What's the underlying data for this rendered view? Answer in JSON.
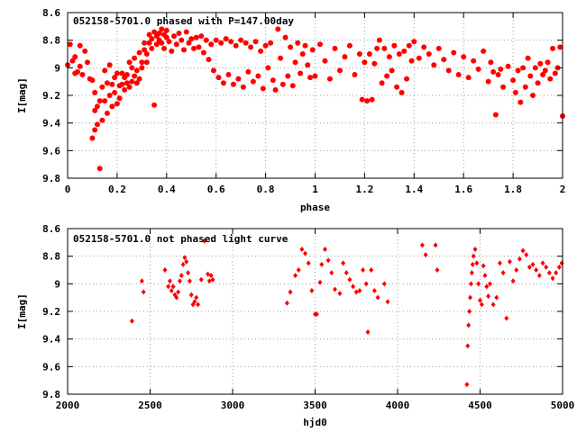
{
  "colors": {
    "series": "#ff0000",
    "axis": "#000000",
    "grid": "#a0a0a0",
    "background": "#ffffff"
  },
  "chart_data": [
    {
      "type": "scatter",
      "title": "052158-5701.0 phased with P=147.00day",
      "xlabel": "phase",
      "ylabel": "I[mag]",
      "xlim": [
        0,
        2
      ],
      "ylim": [
        9.8,
        8.6
      ],
      "y_inverted": true,
      "grid": true,
      "marker": "filled-circle",
      "xticks": [
        0,
        0.2,
        0.4,
        0.6,
        0.8,
        1,
        1.2,
        1.4,
        1.6,
        1.8,
        2
      ],
      "xtick_labels": [
        "0",
        "0.2",
        "0.4",
        "0.6",
        "0.8",
        "1",
        "1.2",
        "1.4",
        "1.6",
        "1.8",
        "2"
      ],
      "yticks": [
        8.6,
        8.8,
        9,
        9.2,
        9.4,
        9.6,
        9.8
      ],
      "ytick_labels": [
        "8.6",
        "8.8",
        "9",
        "9.2",
        "9.4",
        "9.6",
        "9.8"
      ],
      "points": [
        [
          0.0,
          8.98
        ],
        [
          0.01,
          8.83
        ],
        [
          0.02,
          8.95
        ],
        [
          0.03,
          9.04
        ],
        [
          0.03,
          8.92
        ],
        [
          0.04,
          9.03
        ],
        [
          0.05,
          8.84
        ],
        [
          0.05,
          8.99
        ],
        [
          0.06,
          9.05
        ],
        [
          0.07,
          8.88
        ],
        [
          0.08,
          8.96
        ],
        [
          0.09,
          9.08
        ],
        [
          0.1,
          9.09
        ],
        [
          0.1,
          9.51
        ],
        [
          0.11,
          9.45
        ],
        [
          0.11,
          9.18
        ],
        [
          0.11,
          9.31
        ],
        [
          0.12,
          9.41
        ],
        [
          0.12,
          9.28
        ],
        [
          0.13,
          9.24
        ],
        [
          0.13,
          9.73
        ],
        [
          0.14,
          9.38
        ],
        [
          0.14,
          9.14
        ],
        [
          0.15,
          9.02
        ],
        [
          0.15,
          9.24
        ],
        [
          0.16,
          9.33
        ],
        [
          0.16,
          9.11
        ],
        [
          0.17,
          9.2
        ],
        [
          0.17,
          8.98
        ],
        [
          0.18,
          9.28
        ],
        [
          0.18,
          9.12
        ],
        [
          0.19,
          9.18
        ],
        [
          0.19,
          9.07
        ],
        [
          0.2,
          9.04
        ],
        [
          0.2,
          9.26
        ],
        [
          0.21,
          9.13
        ],
        [
          0.21,
          9.22
        ],
        [
          0.22,
          9.04
        ],
        [
          0.22,
          9.12
        ],
        [
          0.23,
          9.07
        ],
        [
          0.23,
          9.16
        ],
        [
          0.24,
          9.11
        ],
        [
          0.24,
          9.05
        ],
        [
          0.25,
          9.14
        ],
        [
          0.25,
          8.96
        ],
        [
          0.26,
          9.1
        ],
        [
          0.26,
          9.0
        ],
        [
          0.27,
          9.06
        ],
        [
          0.27,
          8.93
        ],
        [
          0.28,
          9.11
        ],
        [
          0.28,
          9.02
        ],
        [
          0.29,
          9.08
        ],
        [
          0.29,
          8.89
        ],
        [
          0.3,
          9.0
        ],
        [
          0.3,
          8.96
        ],
        [
          0.31,
          8.87
        ],
        [
          0.31,
          8.82
        ],
        [
          0.32,
          8.9
        ],
        [
          0.32,
          8.96
        ],
        [
          0.33,
          8.82
        ],
        [
          0.33,
          8.76
        ],
        [
          0.34,
          8.86
        ],
        [
          0.34,
          8.79
        ],
        [
          0.35,
          8.74
        ],
        [
          0.35,
          9.27
        ],
        [
          0.36,
          8.77
        ],
        [
          0.36,
          8.83
        ],
        [
          0.37,
          8.75
        ],
        [
          0.37,
          8.8
        ],
        [
          0.38,
          8.72
        ],
        [
          0.38,
          8.82
        ],
        [
          0.39,
          8.76
        ],
        [
          0.39,
          8.86
        ],
        [
          0.4,
          8.78
        ],
        [
          0.4,
          8.73
        ],
        [
          0.41,
          8.81
        ],
        [
          0.42,
          8.88
        ],
        [
          0.43,
          8.77
        ],
        [
          0.44,
          8.83
        ],
        [
          0.45,
          8.75
        ],
        [
          0.46,
          8.8
        ],
        [
          0.47,
          8.87
        ],
        [
          0.48,
          8.74
        ],
        [
          0.49,
          8.82
        ],
        [
          0.5,
          8.79
        ],
        [
          0.51,
          8.86
        ],
        [
          0.52,
          8.78
        ],
        [
          0.53,
          8.85
        ],
        [
          0.54,
          8.77
        ],
        [
          0.55,
          8.89
        ],
        [
          0.56,
          8.8
        ],
        [
          0.57,
          8.94
        ],
        [
          0.58,
          8.83
        ],
        [
          0.59,
          9.02
        ],
        [
          0.6,
          8.8
        ],
        [
          0.61,
          9.07
        ],
        [
          0.62,
          8.82
        ],
        [
          0.63,
          9.11
        ],
        [
          0.64,
          8.79
        ],
        [
          0.65,
          9.05
        ],
        [
          0.66,
          8.81
        ],
        [
          0.67,
          9.12
        ],
        [
          0.68,
          8.84
        ],
        [
          0.69,
          9.08
        ],
        [
          0.7,
          8.8
        ],
        [
          0.71,
          9.14
        ],
        [
          0.72,
          8.82
        ],
        [
          0.73,
          9.03
        ],
        [
          0.74,
          8.85
        ],
        [
          0.75,
          9.1
        ],
        [
          0.76,
          8.81
        ],
        [
          0.77,
          9.06
        ],
        [
          0.78,
          8.88
        ],
        [
          0.79,
          9.15
        ],
        [
          0.8,
          8.84
        ],
        [
          0.81,
          9.0
        ],
        [
          0.82,
          8.82
        ],
        [
          0.83,
          9.09
        ],
        [
          0.84,
          9.16
        ],
        [
          0.85,
          8.72
        ],
        [
          0.86,
          8.93
        ],
        [
          0.87,
          9.12
        ],
        [
          0.88,
          8.78
        ],
        [
          0.89,
          9.06
        ],
        [
          0.9,
          8.85
        ],
        [
          0.91,
          9.13
        ],
        [
          0.92,
          8.96
        ],
        [
          0.93,
          8.82
        ],
        [
          0.94,
          9.04
        ],
        [
          0.95,
          8.9
        ],
        [
          0.96,
          8.84
        ],
        [
          0.97,
          8.98
        ],
        [
          0.98,
          9.07
        ],
        [
          0.99,
          8.87
        ],
        [
          1.0,
          9.06
        ],
        [
          1.02,
          8.83
        ],
        [
          1.04,
          8.95
        ],
        [
          1.06,
          9.08
        ],
        [
          1.08,
          8.86
        ],
        [
          1.1,
          9.02
        ],
        [
          1.12,
          8.92
        ],
        [
          1.14,
          8.84
        ],
        [
          1.16,
          9.05
        ],
        [
          1.18,
          8.9
        ],
        [
          1.19,
          9.23
        ],
        [
          1.2,
          8.96
        ],
        [
          1.21,
          9.24
        ],
        [
          1.22,
          8.9
        ],
        [
          1.23,
          9.23
        ],
        [
          1.24,
          8.97
        ],
        [
          1.25,
          8.86
        ],
        [
          1.26,
          8.8
        ],
        [
          1.27,
          9.11
        ],
        [
          1.28,
          8.86
        ],
        [
          1.29,
          9.06
        ],
        [
          1.3,
          8.92
        ],
        [
          1.31,
          9.02
        ],
        [
          1.32,
          8.84
        ],
        [
          1.33,
          9.14
        ],
        [
          1.34,
          8.9
        ],
        [
          1.35,
          9.18
        ],
        [
          1.36,
          8.88
        ],
        [
          1.37,
          9.08
        ],
        [
          1.38,
          8.84
        ],
        [
          1.39,
          8.95
        ],
        [
          1.4,
          8.81
        ],
        [
          1.42,
          8.93
        ],
        [
          1.44,
          8.85
        ],
        [
          1.46,
          8.9
        ],
        [
          1.48,
          8.98
        ],
        [
          1.5,
          8.86
        ],
        [
          1.52,
          8.94
        ],
        [
          1.54,
          9.02
        ],
        [
          1.56,
          8.89
        ],
        [
          1.58,
          9.05
        ],
        [
          1.6,
          8.92
        ],
        [
          1.62,
          9.07
        ],
        [
          1.64,
          8.95
        ],
        [
          1.66,
          9.01
        ],
        [
          1.68,
          8.88
        ],
        [
          1.7,
          9.1
        ],
        [
          1.71,
          8.96
        ],
        [
          1.72,
          9.03
        ],
        [
          1.73,
          9.34
        ],
        [
          1.74,
          9.05
        ],
        [
          1.75,
          9.01
        ],
        [
          1.76,
          9.14
        ],
        [
          1.78,
          8.99
        ],
        [
          1.8,
          9.09
        ],
        [
          1.81,
          9.18
        ],
        [
          1.82,
          9.02
        ],
        [
          1.83,
          9.25
        ],
        [
          1.84,
          9.0
        ],
        [
          1.85,
          9.14
        ],
        [
          1.86,
          8.93
        ],
        [
          1.87,
          9.06
        ],
        [
          1.88,
          9.2
        ],
        [
          1.89,
          9.0
        ],
        [
          1.9,
          9.11
        ],
        [
          1.91,
          8.97
        ],
        [
          1.92,
          9.05
        ],
        [
          1.93,
          9.02
        ],
        [
          1.94,
          8.96
        ],
        [
          1.95,
          9.08
        ],
        [
          1.96,
          8.86
        ],
        [
          1.97,
          9.04
        ],
        [
          1.98,
          9.0
        ],
        [
          1.99,
          8.85
        ],
        [
          2.0,
          9.35
        ]
      ]
    },
    {
      "type": "scatter",
      "title": "052158-5701.0 not phased light curve",
      "xlabel": "hjd0",
      "ylabel": "I[mag]",
      "xlim": [
        2000,
        5000
      ],
      "ylim": [
        9.8,
        8.6
      ],
      "y_inverted": true,
      "grid": true,
      "marker": "diamond",
      "xticks": [
        2000,
        2500,
        3000,
        3500,
        4000,
        4500,
        5000
      ],
      "xtick_labels": [
        "2000",
        "2500",
        "3000",
        "3500",
        "4000",
        "4500",
        "5000"
      ],
      "yticks": [
        8.6,
        8.8,
        9,
        9.2,
        9.4,
        9.6,
        9.8
      ],
      "ytick_labels": [
        "8.6",
        "8.8",
        "9",
        "9.2",
        "9.4",
        "9.6",
        "9.8"
      ],
      "points": [
        [
          2390,
          9.27
        ],
        [
          2450,
          8.98
        ],
        [
          2460,
          9.06
        ],
        [
          2590,
          8.9
        ],
        [
          2610,
          9.02
        ],
        [
          2620,
          8.98
        ],
        [
          2630,
          9.05
        ],
        [
          2640,
          9.02
        ],
        [
          2650,
          9.08
        ],
        [
          2660,
          9.1
        ],
        [
          2670,
          9.06
        ],
        [
          2680,
          8.98
        ],
        [
          2690,
          8.94
        ],
        [
          2700,
          8.86
        ],
        [
          2710,
          8.81
        ],
        [
          2720,
          8.84
        ],
        [
          2730,
          8.92
        ],
        [
          2740,
          8.98
        ],
        [
          2750,
          9.08
        ],
        [
          2760,
          9.15
        ],
        [
          2770,
          9.13
        ],
        [
          2780,
          9.1
        ],
        [
          2790,
          9.15
        ],
        [
          2810,
          8.97
        ],
        [
          2830,
          8.69
        ],
        [
          2850,
          8.93
        ],
        [
          2860,
          8.98
        ],
        [
          2870,
          8.94
        ],
        [
          2880,
          8.97
        ],
        [
          3330,
          9.14
        ],
        [
          3350,
          9.06
        ],
        [
          3380,
          8.94
        ],
        [
          3400,
          8.9
        ],
        [
          3420,
          8.75
        ],
        [
          3440,
          8.78
        ],
        [
          3460,
          8.85
        ],
        [
          3480,
          9.05
        ],
        [
          3500,
          9.22
        ],
        [
          3510,
          9.22
        ],
        [
          3530,
          8.99
        ],
        [
          3540,
          8.86
        ],
        [
          3560,
          8.75
        ],
        [
          3580,
          8.83
        ],
        [
          3600,
          8.92
        ],
        [
          3620,
          9.04
        ],
        [
          3650,
          9.07
        ],
        [
          3670,
          8.85
        ],
        [
          3690,
          8.92
        ],
        [
          3710,
          8.97
        ],
        [
          3730,
          9.02
        ],
        [
          3750,
          9.06
        ],
        [
          3770,
          9.05
        ],
        [
          3790,
          8.9
        ],
        [
          3810,
          9.0
        ],
        [
          3820,
          9.35
        ],
        [
          3840,
          8.9
        ],
        [
          3860,
          9.05
        ],
        [
          3880,
          9.1
        ],
        [
          3920,
          9.0
        ],
        [
          3940,
          9.13
        ],
        [
          4150,
          8.72
        ],
        [
          4170,
          8.79
        ],
        [
          4230,
          8.72
        ],
        [
          4240,
          8.9
        ],
        [
          4420,
          9.73
        ],
        [
          4425,
          9.45
        ],
        [
          4430,
          9.3
        ],
        [
          4435,
          9.2
        ],
        [
          4440,
          9.1
        ],
        [
          4445,
          9.0
        ],
        [
          4450,
          8.92
        ],
        [
          4455,
          8.86
        ],
        [
          4460,
          8.8
        ],
        [
          4470,
          8.75
        ],
        [
          4480,
          8.85
        ],
        [
          4490,
          9.0
        ],
        [
          4500,
          9.12
        ],
        [
          4510,
          9.15
        ],
        [
          4520,
          8.87
        ],
        [
          4530,
          8.94
        ],
        [
          4540,
          9.02
        ],
        [
          4550,
          9.09
        ],
        [
          4560,
          9.0
        ],
        [
          4580,
          9.15
        ],
        [
          4600,
          9.1
        ],
        [
          4620,
          8.85
        ],
        [
          4640,
          8.92
        ],
        [
          4660,
          9.25
        ],
        [
          4680,
          8.84
        ],
        [
          4700,
          8.98
        ],
        [
          4720,
          8.9
        ],
        [
          4740,
          8.82
        ],
        [
          4760,
          8.76
        ],
        [
          4780,
          8.79
        ],
        [
          4800,
          8.88
        ],
        [
          4820,
          8.86
        ],
        [
          4840,
          8.9
        ],
        [
          4860,
          8.94
        ],
        [
          4880,
          8.85
        ],
        [
          4900,
          8.88
        ],
        [
          4920,
          8.92
        ],
        [
          4940,
          8.96
        ],
        [
          4960,
          8.92
        ],
        [
          4980,
          8.88
        ],
        [
          4995,
          8.85
        ]
      ]
    }
  ]
}
